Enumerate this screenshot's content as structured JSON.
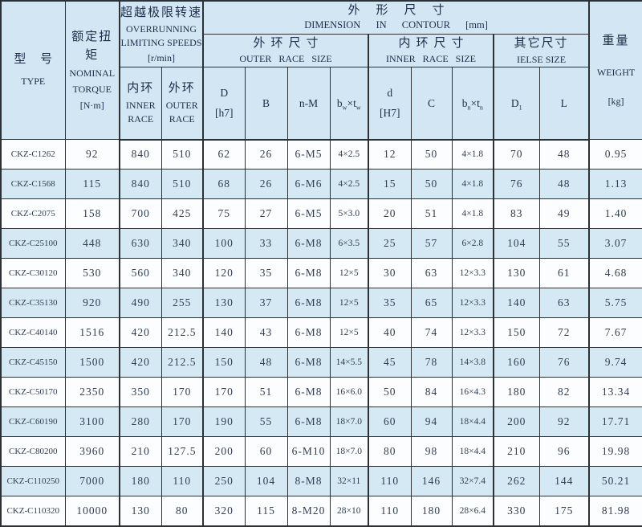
{
  "table": {
    "header": {
      "type": {
        "zh": "型 号",
        "en": "TYPE"
      },
      "nominal_torque": {
        "zh": "额定扭矩",
        "en_line1": "NOMINAL",
        "en_line2": "TORQUE",
        "unit": "[N·m]"
      },
      "overrunning": {
        "zh": "超越极限转速",
        "en_line1": "OVERRUNNING",
        "en_line2": "LIMITING SPEEDS",
        "unit": "[r/min]"
      },
      "dimension": {
        "zh": "外形尺寸",
        "en": "DIMENSION IN CONTOUR [mm]"
      },
      "outer_race_size": {
        "zh": "外环尺寸",
        "en": "OUTER RACE SIZE"
      },
      "inner_race_size": {
        "zh": "内环尺寸",
        "en": "INNER RACE SIZE"
      },
      "else_size": {
        "zh": "其它尺寸",
        "en": "IELSE SIZE"
      },
      "weight": {
        "zh": "重量",
        "en": "WEIGHT",
        "unit": "[kg]"
      },
      "inner_race_col": {
        "zh": "内环",
        "en_line1": "INNER",
        "en_line2": "RACE"
      },
      "outer_race_col": {
        "zh": "外环",
        "en_line1": "OUTER",
        "en_line2": "RACE"
      },
      "col_D": {
        "line1": "D",
        "line2": "[h7]"
      },
      "col_B": "B",
      "col_nM": "n-M",
      "col_bwtw": {
        "base1": "b",
        "sub1": "w",
        "base2": "×t",
        "sub2": "w"
      },
      "col_d": {
        "line1": "d",
        "line2": "[H7]"
      },
      "col_C": "C",
      "col_bntn": {
        "base1": "b",
        "sub1": "n",
        "base2": "×t",
        "sub2": "n"
      },
      "col_D1": {
        "base": "D",
        "sub": "1"
      },
      "col_L": "L"
    },
    "rows": [
      [
        "CKZ-C1262",
        "92",
        "840",
        "510",
        "62",
        "26",
        "6-M5",
        "4×2.5",
        "12",
        "50",
        "4×1.8",
        "70",
        "48",
        "0.95"
      ],
      [
        "CKZ-C1568",
        "115",
        "840",
        "510",
        "68",
        "26",
        "6-M6",
        "4×2.5",
        "15",
        "50",
        "4×1.8",
        "76",
        "48",
        "1.13"
      ],
      [
        "CKZ-C2075",
        "158",
        "700",
        "425",
        "75",
        "27",
        "6-M5",
        "5×3.0",
        "20",
        "51",
        "4×1.8",
        "83",
        "49",
        "1.40"
      ],
      [
        "CKZ-C25100",
        "448",
        "630",
        "340",
        "100",
        "33",
        "6-M8",
        "6×3.5",
        "25",
        "57",
        "6×2.8",
        "104",
        "55",
        "3.07"
      ],
      [
        "CKZ-C30120",
        "530",
        "560",
        "340",
        "120",
        "35",
        "6-M8",
        "12×5",
        "30",
        "63",
        "12×3.3",
        "130",
        "61",
        "4.68"
      ],
      [
        "CKZ-C35130",
        "920",
        "490",
        "255",
        "130",
        "37",
        "6-M8",
        "12×5",
        "35",
        "65",
        "12×3.3",
        "140",
        "63",
        "5.75"
      ],
      [
        "CKZ-C40140",
        "1516",
        "420",
        "212.5",
        "140",
        "43",
        "6-M8",
        "12×5",
        "40",
        "74",
        "12×3.3",
        "150",
        "72",
        "7.67"
      ],
      [
        "CKZ-C45150",
        "1500",
        "420",
        "212.5",
        "150",
        "48",
        "6-M8",
        "14×5.5",
        "45",
        "78",
        "14×3.8",
        "160",
        "76",
        "9.74"
      ],
      [
        "CKZ-C50170",
        "2350",
        "350",
        "170",
        "170",
        "51",
        "6-M8",
        "16×6.0",
        "50",
        "84",
        "16×4.3",
        "180",
        "82",
        "13.34"
      ],
      [
        "CKZ-C60190",
        "3100",
        "280",
        "170",
        "190",
        "55",
        "6-M8",
        "18×7.0",
        "60",
        "94",
        "18×4.4",
        "200",
        "92",
        "17.71"
      ],
      [
        "CKZ-C80200",
        "3960",
        "210",
        "127.5",
        "200",
        "60",
        "6-M10",
        "18×7.0",
        "80",
        "98",
        "18×4.4",
        "210",
        "96",
        "19.98"
      ],
      [
        "CKZ-C110250",
        "7000",
        "180",
        "110",
        "250",
        "104",
        "8-M8",
        "32×11",
        "110",
        "146",
        "32×7.4",
        "262",
        "144",
        "50.21"
      ],
      [
        "CKZ-C110320",
        "10000",
        "130",
        "80",
        "320",
        "115",
        "8-M20",
        "28×10",
        "110",
        "180",
        "28×6.4",
        "330",
        "175",
        "81.98"
      ]
    ]
  },
  "colors": {
    "header_bg": "#d2e6f3",
    "row_bg": "#fcfdfe",
    "row_alt_bg": "#d5e9f5",
    "border": "#2c3135",
    "header_text": "#1d2d4a",
    "data_text": "#313e52"
  }
}
